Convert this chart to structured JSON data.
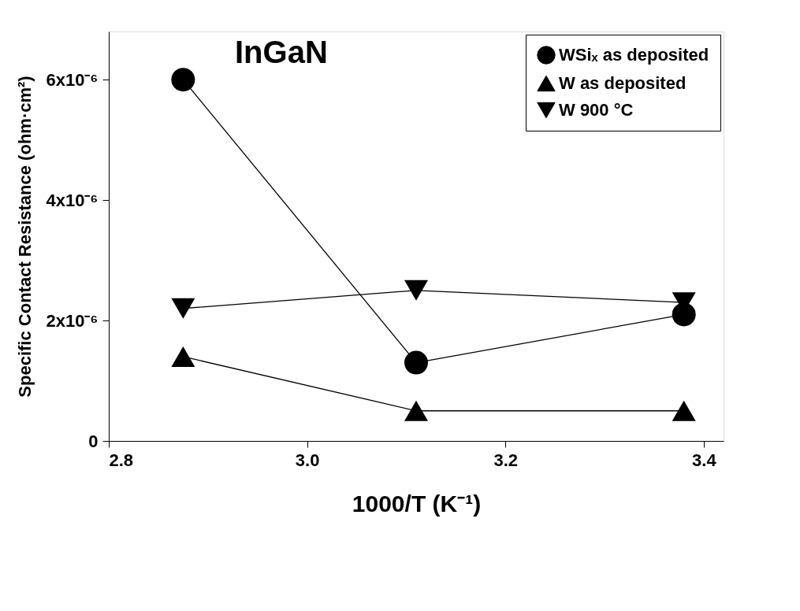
{
  "chart_data": {
    "type": "line",
    "xlabel": "1000/T (K⁻¹)",
    "ylabel": "Specific Contact Resistance (ohm·cm²)",
    "annotations": [
      "InGaN"
    ],
    "x": [
      2.875,
      3.11,
      3.38
    ],
    "xlim": [
      2.8,
      3.42
    ],
    "xticks": [
      {
        "value": 2.8,
        "label": "2.8"
      },
      {
        "value": 3.0,
        "label": "3.0"
      },
      {
        "value": 3.2,
        "label": "3.2"
      },
      {
        "value": 3.4,
        "label": "3.4"
      }
    ],
    "ylim": [
      0,
      6.8e-06
    ],
    "yticks": [
      0,
      {
        "value": 2e-06,
        "label": "2x10⁻⁶"
      },
      {
        "value": 4e-06,
        "label": "4x10⁻⁶"
      },
      {
        "value": 6e-06,
        "label": "6x10⁻⁶"
      }
    ],
    "series": [
      {
        "name": "WSiₓ as deposited",
        "color": "#000000",
        "marker": "circle",
        "values": [
          6e-06,
          1.3e-06,
          2.1e-06
        ]
      },
      {
        "name": "W as deposited",
        "color": "#000000",
        "marker": "triangle",
        "values": [
          1.4e-06,
          5e-07,
          5e-07
        ]
      },
      {
        "name": "W 900 °C",
        "color": "#000000",
        "marker": "triangle-down",
        "values": [
          2.2e-06,
          2.5e-06,
          2.3e-06
        ]
      }
    ],
    "legend": "top right",
    "grid": false,
    "line_style": "solid"
  }
}
